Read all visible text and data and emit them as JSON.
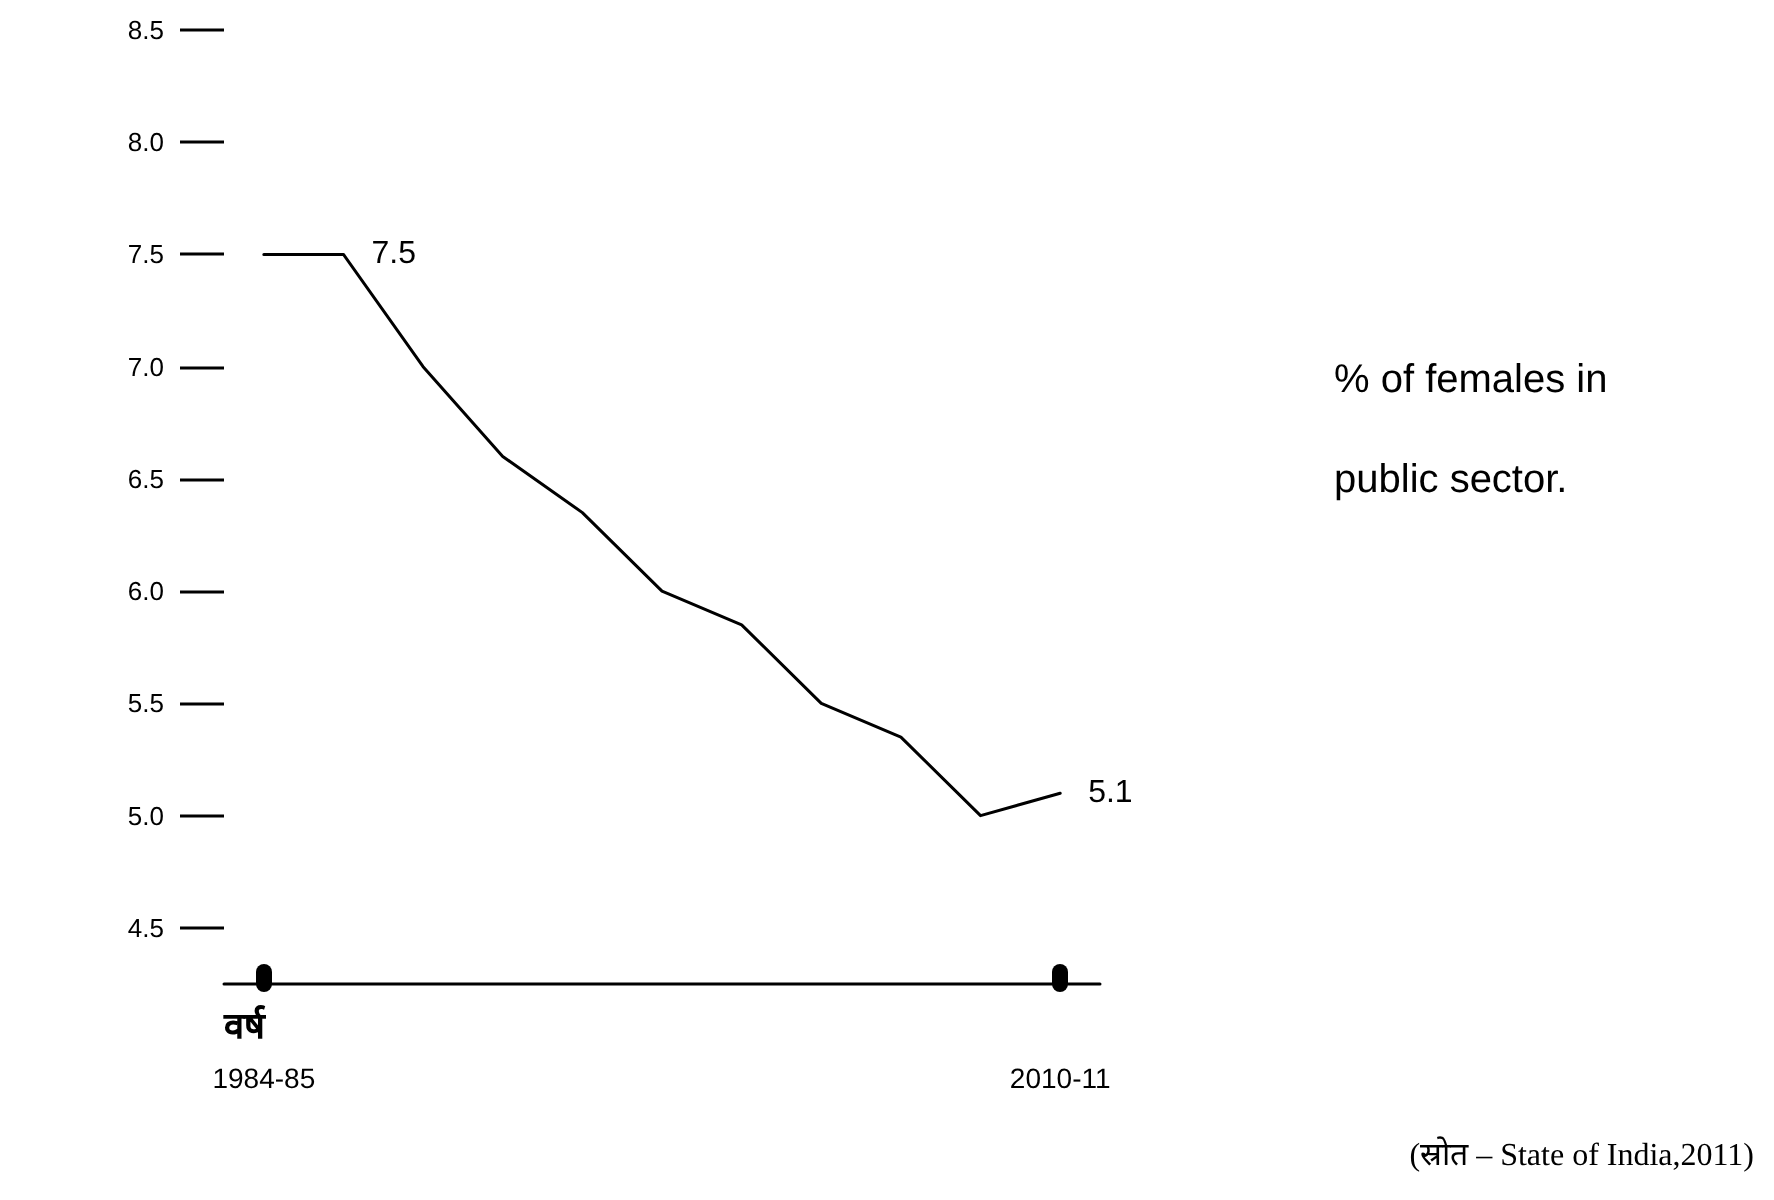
{
  "chart_data": {
    "type": "line",
    "title": "% of females in public sector.",
    "xlabel": "वर्ष",
    "annotations": [
      "(स्रोत – State of India,2011)"
    ],
    "categories": [
      "1984-85",
      null,
      null,
      null,
      null,
      null,
      null,
      null,
      null,
      null,
      "2010-11"
    ],
    "series": [
      {
        "color": "#000000",
        "values": [
          7.5,
          7.5,
          7.0,
          6.6,
          6.35,
          6.0,
          5.85,
          5.5,
          5.35,
          5.0,
          5.1
        ],
        "value_labels": [
          null,
          "7.5",
          null,
          null,
          null,
          null,
          null,
          null,
          null,
          null,
          "5.1"
        ]
      }
    ],
    "ylim": [
      4.25,
      8.5
    ],
    "yticks": [
      4.5,
      {
        "value": 5,
        "label": "5.0"
      },
      5.5,
      {
        "value": 6,
        "label": "6.0"
      },
      6.5,
      {
        "value": 7,
        "label": "7.0"
      },
      7.5,
      {
        "value": 8,
        "label": "8.0"
      },
      8.5
    ],
    "grid": false,
    "marker": "none",
    "line_style": "solid"
  }
}
